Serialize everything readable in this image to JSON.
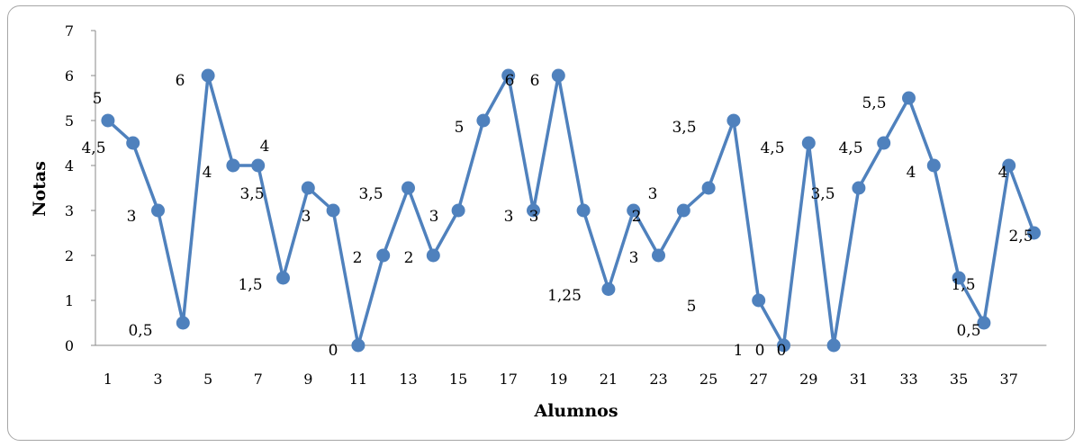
{
  "chart_data": {
    "type": "line",
    "xlabel": "Alumnos",
    "ylabel": "Notas",
    "ylim": [
      0,
      7
    ],
    "y_ticks": [
      "0",
      "1",
      "2",
      "3",
      "4",
      "5",
      "6",
      "7"
    ],
    "x_tick_labels": [
      "1",
      "3",
      "5",
      "7",
      "9",
      "11",
      "13",
      "15",
      "17",
      "19",
      "21",
      "23",
      "25",
      "27",
      "29",
      "31",
      "33",
      "35",
      "37"
    ],
    "x": [
      1,
      2,
      3,
      4,
      5,
      6,
      7,
      8,
      9,
      10,
      11,
      12,
      13,
      14,
      15,
      16,
      17,
      18,
      19,
      20,
      21,
      22,
      23,
      24,
      25,
      26,
      27,
      28,
      29,
      30,
      31,
      32,
      33,
      34,
      35,
      36,
      37,
      38
    ],
    "values": [
      5,
      4.5,
      3,
      0.5,
      6,
      4,
      4,
      1.5,
      3.5,
      3,
      0,
      2,
      3.5,
      2,
      3,
      5,
      6,
      3,
      6,
      3,
      1.25,
      3,
      2,
      3,
      3.5,
      5,
      1,
      0,
      4.5,
      0,
      3.5,
      4.5,
      5.5,
      4,
      1.5,
      0.5,
      4,
      2.5
    ],
    "data_labels": [
      "5",
      "4,5",
      "3",
      "0,5",
      "6",
      "4",
      "4",
      "1,5",
      "3,5",
      "3",
      "0",
      "2",
      "3,5",
      "2",
      "3",
      "5",
      "6",
      "3",
      "6",
      "3",
      "1,25",
      "3",
      "2",
      "3",
      "3,5",
      "5",
      "1",
      "0",
      "4,5",
      "0",
      "3,5",
      "4,5",
      "5,5",
      "4",
      "1,5",
      "0,5",
      "4",
      "2,5"
    ],
    "series_color": "#4f81bd",
    "grid": false,
    "legend": "none"
  }
}
